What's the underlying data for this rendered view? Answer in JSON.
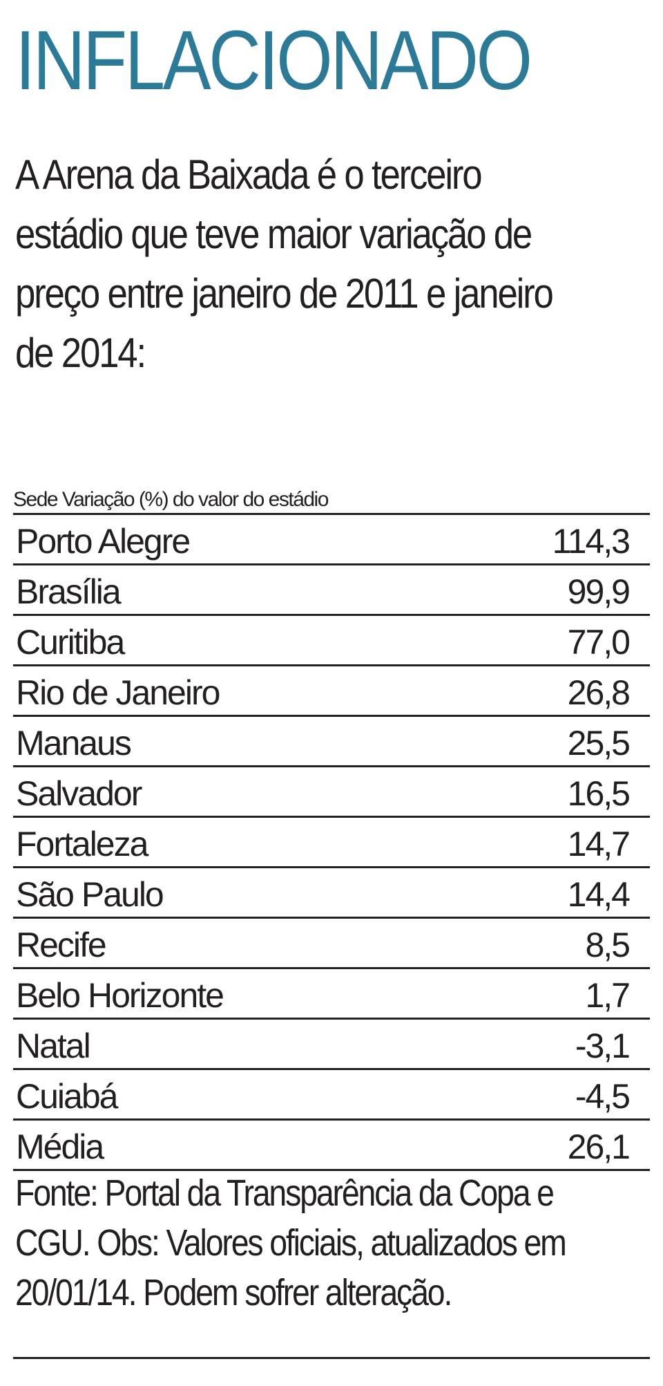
{
  "header": {
    "title": "INFLACIONADO",
    "intro": "A Arena da Baixada é o terceiro estádio que teve maior variação de preço entre janeiro de 2011 e janeiro de 2014:"
  },
  "table": {
    "header": "Sede Variação (%) do valor do estádio",
    "rows": [
      [
        "Porto Alegre",
        "114,3"
      ],
      [
        "Brasília",
        "99,9"
      ],
      [
        "Curitiba",
        "77,0"
      ],
      [
        "Rio de Janeiro",
        "26,8"
      ],
      [
        "Manaus",
        "25,5"
      ],
      [
        "Salvador",
        "16,5"
      ],
      [
        "Fortaleza",
        "14,7"
      ],
      [
        "São Paulo",
        "14,4"
      ],
      [
        "Recife",
        "8,5"
      ],
      [
        "Belo Horizonte",
        "1,7"
      ],
      [
        "Natal",
        "-3,1"
      ],
      [
        "Cuiabá",
        "-4,5"
      ],
      [
        "Média",
        "26,1"
      ]
    ]
  },
  "footer": {
    "note": "Fonte: Portal da Transparência da Copa e CGU. Obs: Valores oficiais, atualizados em 20/01/14. Podem sofrer alteração."
  }
}
